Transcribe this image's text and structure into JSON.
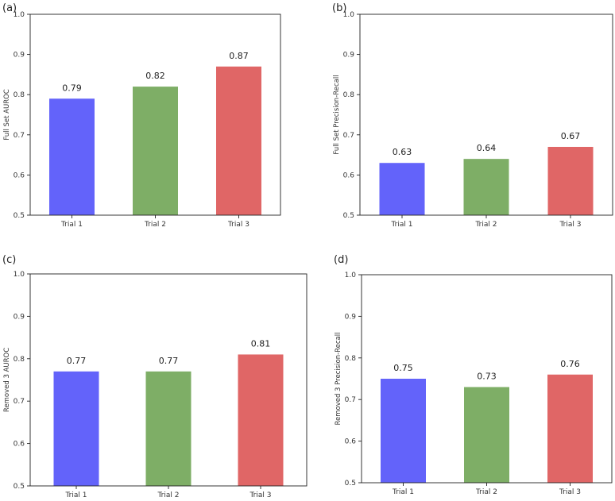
{
  "chart_data": [
    {
      "panel": "(a)",
      "type": "bar",
      "categories": [
        "Trial 1",
        "Trial 2",
        "Trial 3"
      ],
      "values": [
        0.79,
        0.82,
        0.87
      ],
      "value_labels": [
        "0.79",
        "0.82",
        "0.87"
      ],
      "ylabel": "Full Set AUROC",
      "ylim": [
        0.5,
        1.0
      ],
      "yticks": [
        "0.5",
        "0.6",
        "0.7",
        "0.8",
        "0.9",
        "1.0"
      ],
      "grid": false
    },
    {
      "panel": "(b)",
      "type": "bar",
      "categories": [
        "Trial 1",
        "Trial 2",
        "Trial 3"
      ],
      "values": [
        0.63,
        0.64,
        0.67
      ],
      "value_labels": [
        "0.63",
        "0.64",
        "0.67"
      ],
      "ylabel": "Full Set Precision-Recall",
      "ylim": [
        0.5,
        1.0
      ],
      "yticks": [
        "0.5",
        "0.6",
        "0.7",
        "0.8",
        "0.9",
        "1.0"
      ],
      "grid": false
    },
    {
      "panel": "(c)",
      "type": "bar",
      "categories": [
        "Trial 1",
        "Trial 2",
        "Trial 3"
      ],
      "values": [
        0.77,
        0.77,
        0.81
      ],
      "value_labels": [
        "0.77",
        "0.77",
        "0.81"
      ],
      "ylabel": "Removed 3 AUROC",
      "ylim": [
        0.5,
        1.0
      ],
      "yticks": [
        "0.5",
        "0.6",
        "0.7",
        "0.8",
        "0.9",
        "1.0"
      ],
      "grid": false
    },
    {
      "panel": "(d)",
      "type": "bar",
      "categories": [
        "Trial 1",
        "Trial 2",
        "Trial 3"
      ],
      "values": [
        0.75,
        0.73,
        0.76
      ],
      "value_labels": [
        "0.75",
        "0.73",
        "0.76"
      ],
      "ylabel": "Removed 3 Precision-Recall",
      "ylim": [
        0.5,
        1.0
      ],
      "yticks": [
        "0.5",
        "0.6",
        "0.7",
        "0.8",
        "0.9",
        "1.0"
      ],
      "grid": false
    }
  ],
  "colors": {
    "bars": [
      "#6363fa",
      "#7eae66",
      "#e06666"
    ],
    "frame": "#222222"
  }
}
